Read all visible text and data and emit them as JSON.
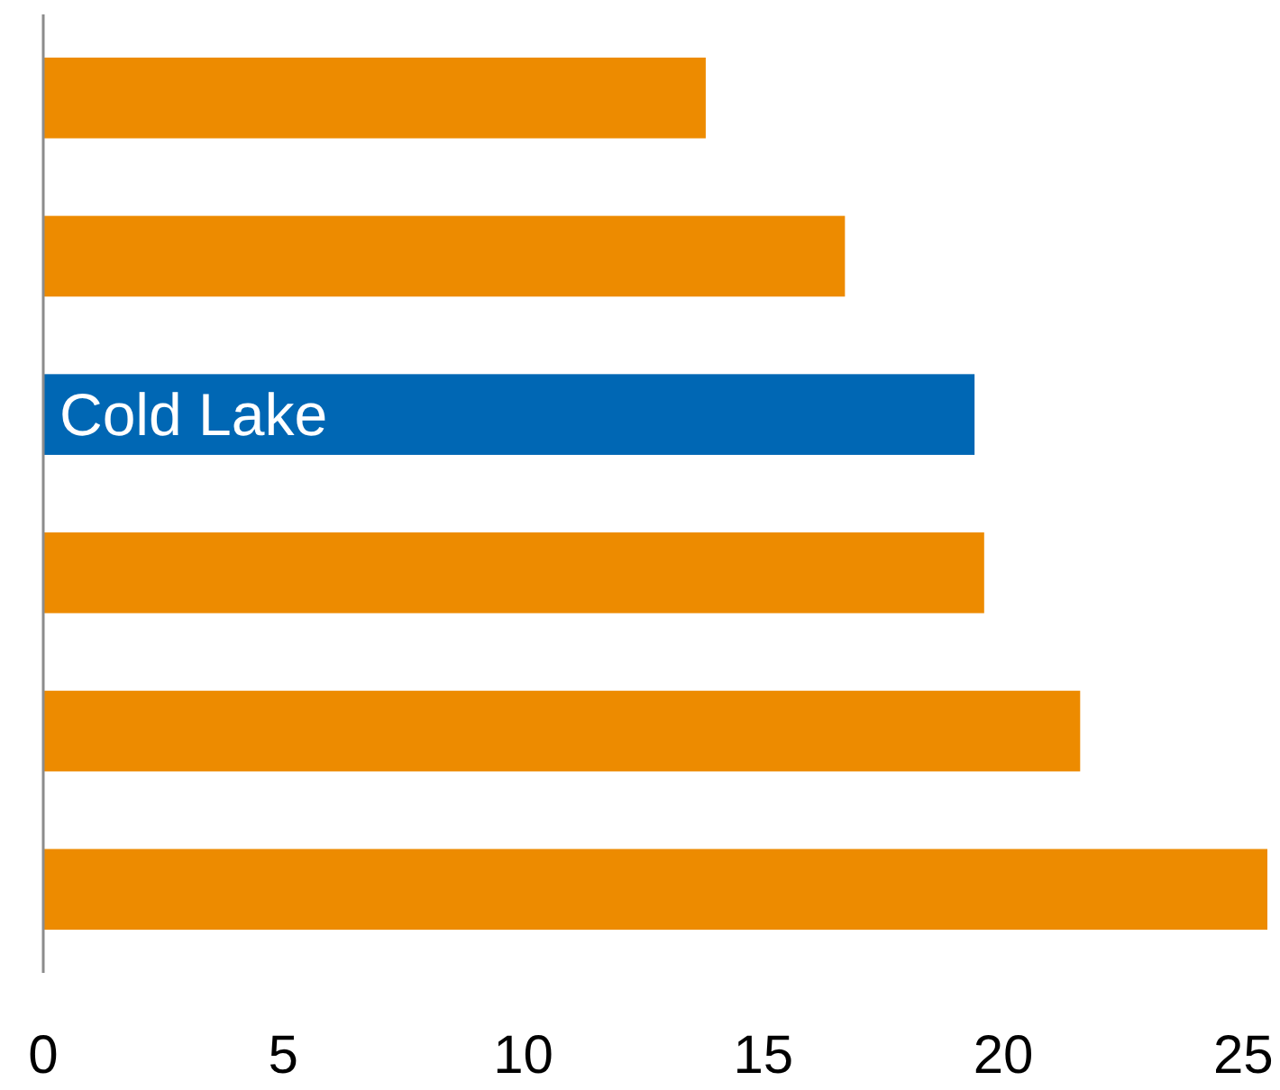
{
  "chart_data": {
    "type": "bar",
    "orientation": "horizontal",
    "categories": [
      null,
      null,
      "Cold Lake",
      null,
      null,
      null
    ],
    "values": [
      13.8,
      16.7,
      19.4,
      19.6,
      21.6,
      25.5
    ],
    "colors": [
      "#ed8b00",
      "#ed8b00",
      "#0067b4",
      "#ed8b00",
      "#ed8b00",
      "#ed8b00"
    ],
    "xlim": [
      0,
      25.5
    ],
    "xticks": [
      0,
      5,
      10,
      15,
      20,
      25
    ]
  }
}
